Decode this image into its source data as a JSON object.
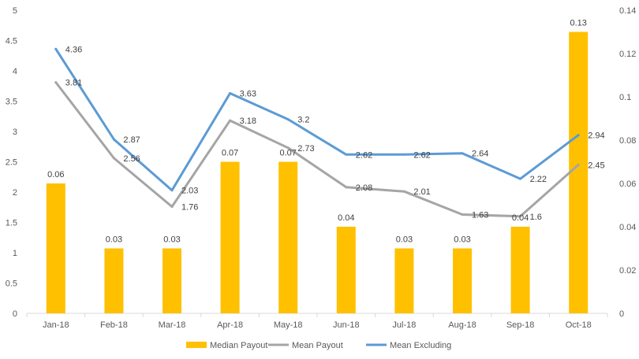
{
  "chart_data": {
    "type": "bar",
    "title": "",
    "categories": [
      "Jan-18",
      "Feb-18",
      "Mar-18",
      "Apr-18",
      "May-18",
      "Jun-18",
      "Jul-18",
      "Aug-18",
      "Sep-18",
      "Oct-18"
    ],
    "bar_series": {
      "name": "Median Payout",
      "axis": "right",
      "color": "#ffc000",
      "values": [
        0.06,
        0.03,
        0.03,
        0.07,
        0.07,
        0.04,
        0.03,
        0.03,
        0.04,
        0.13
      ],
      "labels": [
        "0.06",
        "0.03",
        "0.03",
        "0.07",
        "0.07",
        "0.04",
        "0.03",
        "0.03",
        "0.04",
        "0.13"
      ]
    },
    "line_series": [
      {
        "name": "Mean Payout",
        "axis": "left",
        "color": "#a5a5a5",
        "values": [
          3.81,
          2.56,
          1.76,
          3.18,
          2.73,
          2.08,
          2.01,
          1.63,
          1.6,
          2.45
        ],
        "labels": [
          "3.81",
          "2.56",
          "1.76",
          "3.18",
          "2.73",
          "2.08",
          "2.01",
          "1.63",
          "1.6",
          "2.45"
        ]
      },
      {
        "name": "Mean Excluding",
        "axis": "left",
        "color": "#5b9bd5",
        "values": [
          4.36,
          2.87,
          2.03,
          3.63,
          3.2,
          2.62,
          2.62,
          2.64,
          2.22,
          2.94
        ],
        "labels": [
          "4.36",
          "2.87",
          "2.03",
          "3.63",
          "3.2",
          "2.62",
          "2.62",
          "2.64",
          "2.22",
          "2.94"
        ]
      }
    ],
    "y_left": {
      "min": 0,
      "max": 5,
      "step": 0.5,
      "ticks": [
        "0",
        "0.5",
        "1",
        "1.5",
        "2",
        "2.5",
        "3",
        "3.5",
        "4",
        "4.5",
        "5"
      ]
    },
    "y_right": {
      "min": 0,
      "max": 0.14,
      "step": 0.02,
      "ticks": [
        "0",
        "0.02",
        "0.04",
        "0.06",
        "0.08",
        "0.1",
        "0.12",
        "0.14"
      ]
    },
    "grid": false,
    "legend_position": "bottom",
    "legend": [
      "Median Payout",
      "Mean Payout",
      "Mean Excluding"
    ]
  }
}
